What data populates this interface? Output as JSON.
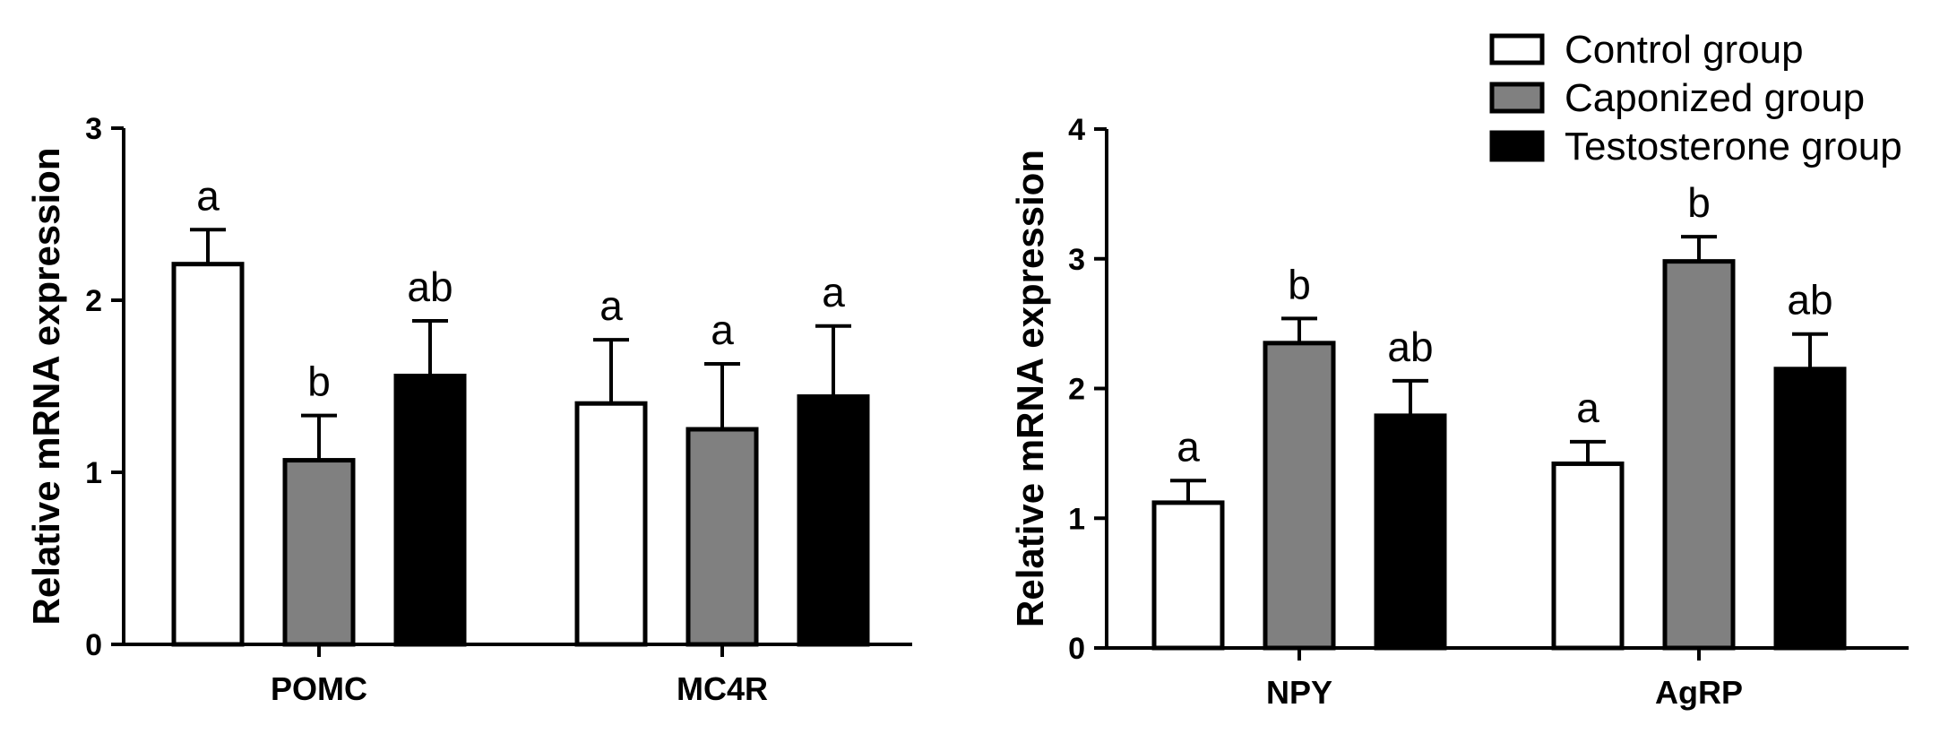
{
  "colors": {
    "Control group": "#ffffff",
    "Caponized group": "#808080",
    "Testosterone group": "#000000"
  },
  "legend": [
    "Control group",
    "Caponized group",
    "Testosterone group"
  ],
  "chart_data": [
    {
      "type": "bar",
      "categories": [
        "POMC",
        "MC4R"
      ],
      "ylabel": "Relative mRNA expression",
      "ylim": [
        0,
        3
      ],
      "yticks": [
        "0",
        "1",
        "2",
        "3"
      ],
      "series": [
        {
          "name": "Control group",
          "values": [
            2.21,
            1.4
          ],
          "errors": [
            0.2,
            0.37
          ],
          "labels": [
            "a",
            "a"
          ]
        },
        {
          "name": "Caponized group",
          "values": [
            1.07,
            1.25
          ],
          "errors": [
            0.26,
            0.38
          ],
          "labels": [
            "b",
            "a"
          ]
        },
        {
          "name": "Testosterone group",
          "values": [
            1.56,
            1.44
          ],
          "errors": [
            0.32,
            0.41
          ],
          "labels": [
            "ab",
            "a"
          ]
        }
      ]
    },
    {
      "type": "bar",
      "categories": [
        "NPY",
        "AgRP"
      ],
      "ylabel": "Relative mRNA expression",
      "ylim": [
        0,
        4
      ],
      "yticks": [
        "0",
        "1",
        "2",
        "3",
        "4"
      ],
      "series": [
        {
          "name": "Control group",
          "values": [
            1.12,
            1.42
          ],
          "errors": [
            0.17,
            0.17
          ],
          "labels": [
            "a",
            "a"
          ]
        },
        {
          "name": "Caponized group",
          "values": [
            2.35,
            2.98
          ],
          "errors": [
            0.19,
            0.19
          ],
          "labels": [
            "b",
            "b"
          ]
        },
        {
          "name": "Testosterone group",
          "values": [
            1.79,
            2.15
          ],
          "errors": [
            0.27,
            0.27
          ],
          "labels": [
            "ab",
            "ab"
          ]
        }
      ]
    }
  ]
}
